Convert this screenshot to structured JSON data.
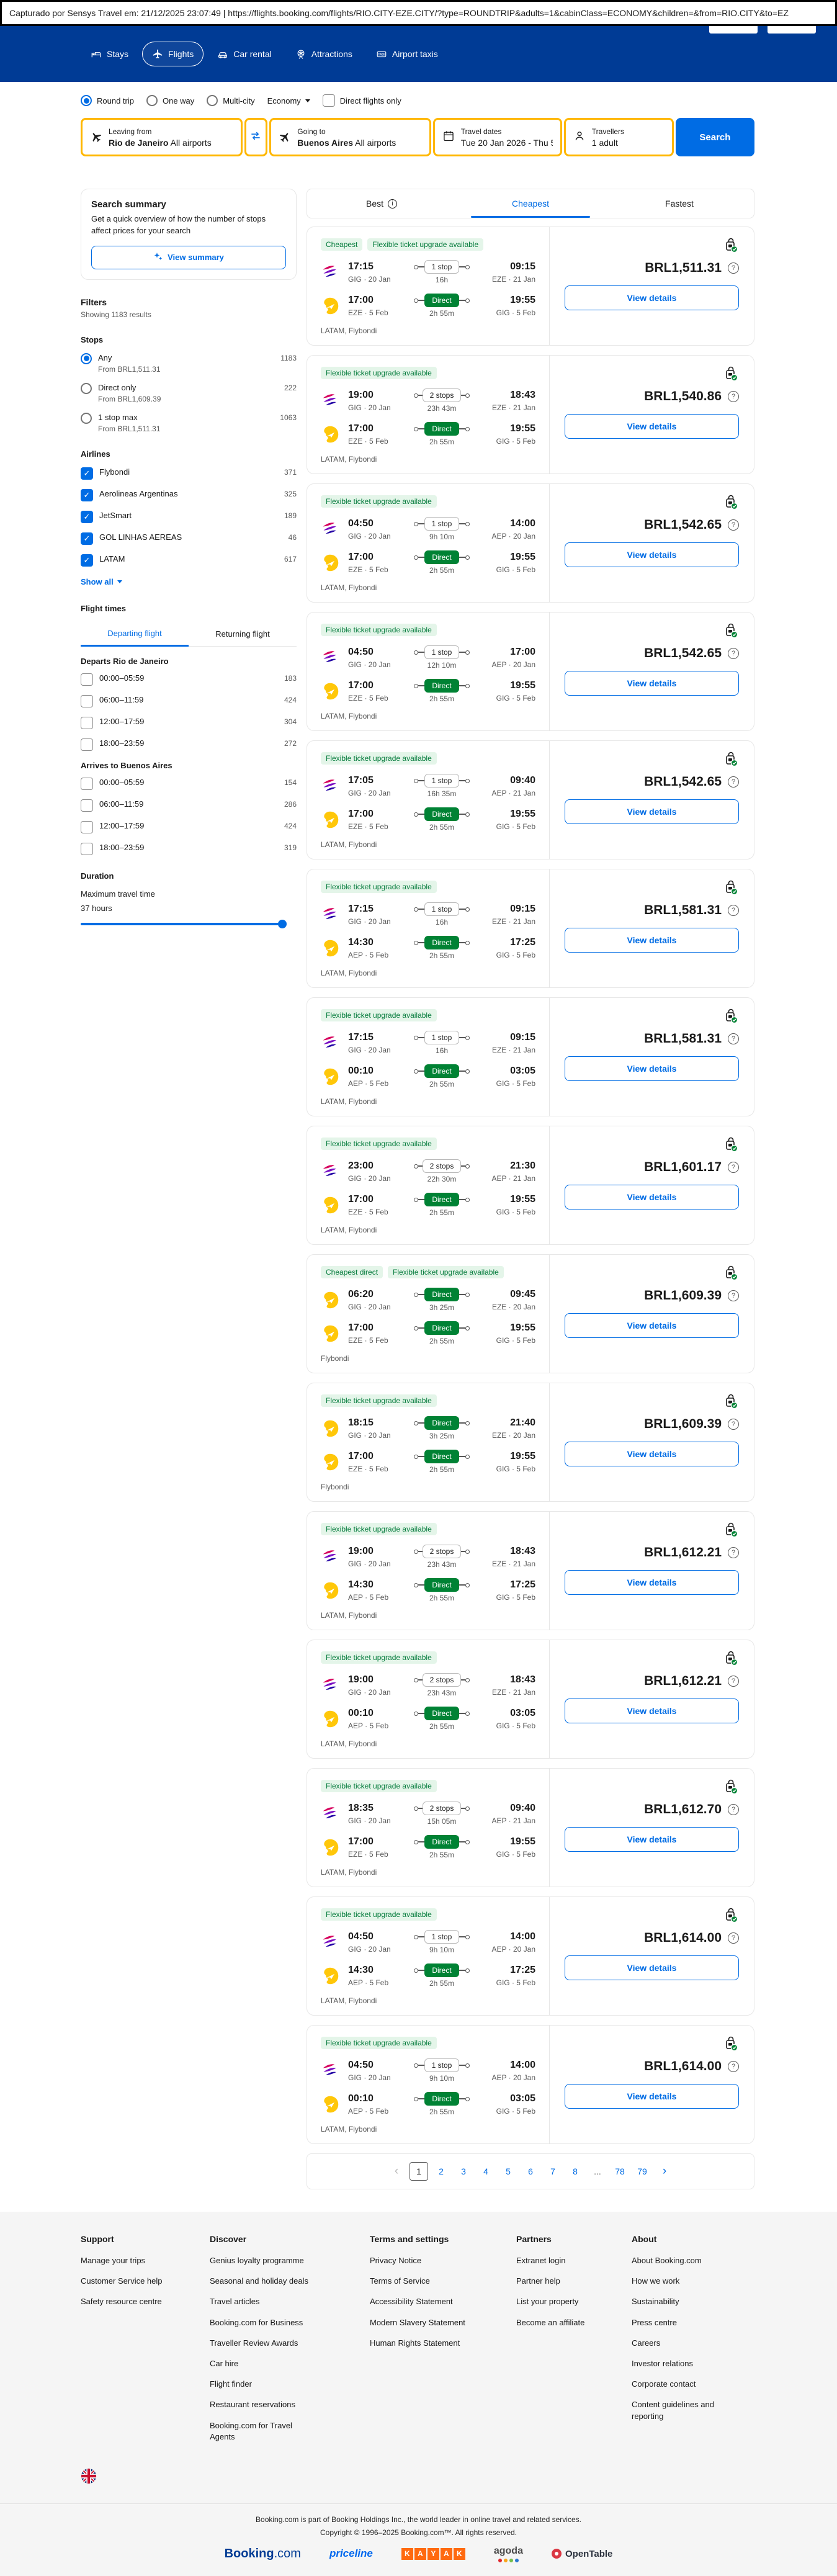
{
  "colors": {
    "header_blue": "#003b95",
    "accent_blue": "#006ce4",
    "search_yellow": "#ffb700",
    "direct_green": "#008234",
    "badge_green_bg": "#e4f5e9"
  },
  "capture_bar": {
    "text": "Capturado por Sensys Travel em: 21/12/2025 23:07:49  |  https://flights.booking.com/flights/RIO.CITY-EZE.CITY/?type=ROUNDTRIP&adults=1&cabinClass=ECONOMY&children=&from=RIO.CITY&to=EZ"
  },
  "header": {
    "nav": [
      {
        "label": "Stays",
        "icon": "bed",
        "active": false
      },
      {
        "label": "Flights",
        "icon": "plane",
        "active": true
      },
      {
        "label": "Car rental",
        "icon": "car",
        "active": false
      },
      {
        "label": "Attractions",
        "icon": "ferris-wheel",
        "active": false
      },
      {
        "label": "Airport taxis",
        "icon": "taxi",
        "active": false
      }
    ]
  },
  "search_form": {
    "trip_types": [
      {
        "label": "Round trip",
        "selected": true
      },
      {
        "label": "One way",
        "selected": false
      },
      {
        "label": "Multi-city",
        "selected": false
      }
    ],
    "cabin_class": "Economy",
    "direct_only_label": "Direct flights only",
    "fields": {
      "from": {
        "label": "Leaving from",
        "value_bold": "Rio de Janeiro",
        "value_rest": " All airports"
      },
      "to": {
        "label": "Going to",
        "value_bold": "Buenos Aires",
        "value_rest": " All airports"
      },
      "dates": {
        "label": "Travel dates",
        "value": "Tue 20 Jan 2026 - Thu 5 ..."
      },
      "travellers": {
        "label": "Travellers",
        "value": "1 adult"
      }
    },
    "search_button": "Search"
  },
  "sidebar": {
    "summary_card": {
      "title": "Search summary",
      "description": "Get a quick overview of how the number of stops affect prices for your search",
      "button": "View summary"
    },
    "filters_title": "Filters",
    "results_count": "Showing 1183 results",
    "stops": {
      "title": "Stops",
      "options": [
        {
          "label": "Any",
          "count": "1183",
          "sub": "From BRL1,511.31",
          "selected": true
        },
        {
          "label": "Direct only",
          "count": "222",
          "sub": "From BRL1,609.39",
          "selected": false
        },
        {
          "label": "1 stop max",
          "count": "1063",
          "sub": "From BRL1,511.31",
          "selected": false
        }
      ]
    },
    "airlines": {
      "title": "Airlines",
      "show_all": "Show all",
      "options": [
        {
          "label": "Flybondi",
          "count": "371",
          "checked": true
        },
        {
          "label": "Aerolineas Argentinas",
          "count": "325",
          "checked": true
        },
        {
          "label": "JetSmart",
          "count": "189",
          "checked": true
        },
        {
          "label": "GOL LINHAS AEREAS",
          "count": "46",
          "checked": true
        },
        {
          "label": "LATAM",
          "count": "617",
          "checked": true
        }
      ]
    },
    "flight_times": {
      "title": "Flight times",
      "tabs": [
        {
          "label": "Departing flight",
          "active": true
        },
        {
          "label": "Returning flight",
          "active": false
        }
      ],
      "groups": [
        {
          "title": "Departs Rio de Janeiro",
          "options": [
            {
              "label": "00:00–05:59",
              "count": "183"
            },
            {
              "label": "06:00–11:59",
              "count": "424"
            },
            {
              "label": "12:00–17:59",
              "count": "304"
            },
            {
              "label": "18:00–23:59",
              "count": "272"
            }
          ]
        },
        {
          "title": "Arrives to Buenos Aires",
          "options": [
            {
              "label": "00:00–05:59",
              "count": "154"
            },
            {
              "label": "06:00–11:59",
              "count": "286"
            },
            {
              "label": "12:00–17:59",
              "count": "424"
            },
            {
              "label": "18:00–23:59",
              "count": "319"
            }
          ]
        }
      ]
    },
    "duration": {
      "title": "Duration",
      "label": "Maximum travel time",
      "value": "37 hours"
    }
  },
  "results": {
    "tabs": [
      {
        "label": "Best",
        "info": true,
        "active": false
      },
      {
        "label": "Cheapest",
        "info": false,
        "active": true
      },
      {
        "label": "Fastest",
        "info": false,
        "active": false
      }
    ],
    "view_details_label": "View details",
    "flights": [
      {
        "badges": [
          "Cheapest",
          "Flexible ticket upgrade available"
        ],
        "legs": [
          {
            "carrier": "latam",
            "dep": "17:15",
            "dep_info": "GIG · 20 Jan",
            "stops": "1 stop",
            "direct": false,
            "dur": "16h",
            "arr": "09:15",
            "arr_info": "EZE · 21 Jan"
          },
          {
            "carrier": "flybondi",
            "dep": "17:00",
            "dep_info": "EZE · 5 Feb",
            "stops": "Direct",
            "direct": true,
            "dur": "2h 55m",
            "arr": "19:55",
            "arr_info": "GIG · 5 Feb"
          }
        ],
        "airlines": "LATAM, Flybondi",
        "price": "BRL1,511.31"
      },
      {
        "badges": [
          "Flexible ticket upgrade available"
        ],
        "legs": [
          {
            "carrier": "latam",
            "dep": "19:00",
            "dep_info": "GIG · 20 Jan",
            "stops": "2 stops",
            "direct": false,
            "dur": "23h 43m",
            "arr": "18:43",
            "arr_info": "EZE · 21 Jan"
          },
          {
            "carrier": "flybondi",
            "dep": "17:00",
            "dep_info": "EZE · 5 Feb",
            "stops": "Direct",
            "direct": true,
            "dur": "2h 55m",
            "arr": "19:55",
            "arr_info": "GIG · 5 Feb"
          }
        ],
        "airlines": "LATAM, Flybondi",
        "price": "BRL1,540.86"
      },
      {
        "badges": [
          "Flexible ticket upgrade available"
        ],
        "legs": [
          {
            "carrier": "latam",
            "dep": "04:50",
            "dep_info": "GIG · 20 Jan",
            "stops": "1 stop",
            "direct": false,
            "dur": "9h 10m",
            "arr": "14:00",
            "arr_info": "AEP · 20 Jan"
          },
          {
            "carrier": "flybondi",
            "dep": "17:00",
            "dep_info": "EZE · 5 Feb",
            "stops": "Direct",
            "direct": true,
            "dur": "2h 55m",
            "arr": "19:55",
            "arr_info": "GIG · 5 Feb"
          }
        ],
        "airlines": "LATAM, Flybondi",
        "price": "BRL1,542.65"
      },
      {
        "badges": [
          "Flexible ticket upgrade available"
        ],
        "legs": [
          {
            "carrier": "latam",
            "dep": "04:50",
            "dep_info": "GIG · 20 Jan",
            "stops": "1 stop",
            "direct": false,
            "dur": "12h 10m",
            "arr": "17:00",
            "arr_info": "AEP · 20 Jan"
          },
          {
            "carrier": "flybondi",
            "dep": "17:00",
            "dep_info": "EZE · 5 Feb",
            "stops": "Direct",
            "direct": true,
            "dur": "2h 55m",
            "arr": "19:55",
            "arr_info": "GIG · 5 Feb"
          }
        ],
        "airlines": "LATAM, Flybondi",
        "price": "BRL1,542.65"
      },
      {
        "badges": [
          "Flexible ticket upgrade available"
        ],
        "legs": [
          {
            "carrier": "latam",
            "dep": "17:05",
            "dep_info": "GIG · 20 Jan",
            "stops": "1 stop",
            "direct": false,
            "dur": "16h 35m",
            "arr": "09:40",
            "arr_info": "AEP · 21 Jan"
          },
          {
            "carrier": "flybondi",
            "dep": "17:00",
            "dep_info": "EZE · 5 Feb",
            "stops": "Direct",
            "direct": true,
            "dur": "2h 55m",
            "arr": "19:55",
            "arr_info": "GIG · 5 Feb"
          }
        ],
        "airlines": "LATAM, Flybondi",
        "price": "BRL1,542.65"
      },
      {
        "badges": [
          "Flexible ticket upgrade available"
        ],
        "legs": [
          {
            "carrier": "latam",
            "dep": "17:15",
            "dep_info": "GIG · 20 Jan",
            "stops": "1 stop",
            "direct": false,
            "dur": "16h",
            "arr": "09:15",
            "arr_info": "EZE · 21 Jan"
          },
          {
            "carrier": "flybondi",
            "dep": "14:30",
            "dep_info": "AEP · 5 Feb",
            "stops": "Direct",
            "direct": true,
            "dur": "2h 55m",
            "arr": "17:25",
            "arr_info": "GIG · 5 Feb"
          }
        ],
        "airlines": "LATAM, Flybondi",
        "price": "BRL1,581.31"
      },
      {
        "badges": [
          "Flexible ticket upgrade available"
        ],
        "legs": [
          {
            "carrier": "latam",
            "dep": "17:15",
            "dep_info": "GIG · 20 Jan",
            "stops": "1 stop",
            "direct": false,
            "dur": "16h",
            "arr": "09:15",
            "arr_info": "EZE · 21 Jan"
          },
          {
            "carrier": "flybondi",
            "dep": "00:10",
            "dep_info": "AEP · 5 Feb",
            "stops": "Direct",
            "direct": true,
            "dur": "2h 55m",
            "arr": "03:05",
            "arr_info": "GIG · 5 Feb"
          }
        ],
        "airlines": "LATAM, Flybondi",
        "price": "BRL1,581.31"
      },
      {
        "badges": [
          "Flexible ticket upgrade available"
        ],
        "legs": [
          {
            "carrier": "latam",
            "dep": "23:00",
            "dep_info": "GIG · 20 Jan",
            "stops": "2 stops",
            "direct": false,
            "dur": "22h 30m",
            "arr": "21:30",
            "arr_info": "AEP · 21 Jan"
          },
          {
            "carrier": "flybondi",
            "dep": "17:00",
            "dep_info": "EZE · 5 Feb",
            "stops": "Direct",
            "direct": true,
            "dur": "2h 55m",
            "arr": "19:55",
            "arr_info": "GIG · 5 Feb"
          }
        ],
        "airlines": "LATAM, Flybondi",
        "price": "BRL1,601.17"
      },
      {
        "badges": [
          "Cheapest direct",
          "Flexible ticket upgrade available"
        ],
        "legs": [
          {
            "carrier": "flybondi",
            "dep": "06:20",
            "dep_info": "GIG · 20 Jan",
            "stops": "Direct",
            "direct": true,
            "dur": "3h 25m",
            "arr": "09:45",
            "arr_info": "EZE · 20 Jan"
          },
          {
            "carrier": "flybondi",
            "dep": "17:00",
            "dep_info": "EZE · 5 Feb",
            "stops": "Direct",
            "direct": true,
            "dur": "2h 55m",
            "arr": "19:55",
            "arr_info": "GIG · 5 Feb"
          }
        ],
        "airlines": "Flybondi",
        "price": "BRL1,609.39"
      },
      {
        "badges": [
          "Flexible ticket upgrade available"
        ],
        "legs": [
          {
            "carrier": "flybondi",
            "dep": "18:15",
            "dep_info": "GIG · 20 Jan",
            "stops": "Direct",
            "direct": true,
            "dur": "3h 25m",
            "arr": "21:40",
            "arr_info": "EZE · 20 Jan"
          },
          {
            "carrier": "flybondi",
            "dep": "17:00",
            "dep_info": "EZE · 5 Feb",
            "stops": "Direct",
            "direct": true,
            "dur": "2h 55m",
            "arr": "19:55",
            "arr_info": "GIG · 5 Feb"
          }
        ],
        "airlines": "Flybondi",
        "price": "BRL1,609.39"
      },
      {
        "badges": [
          "Flexible ticket upgrade available"
        ],
        "legs": [
          {
            "carrier": "latam",
            "dep": "19:00",
            "dep_info": "GIG · 20 Jan",
            "stops": "2 stops",
            "direct": false,
            "dur": "23h 43m",
            "arr": "18:43",
            "arr_info": "EZE · 21 Jan"
          },
          {
            "carrier": "flybondi",
            "dep": "14:30",
            "dep_info": "AEP · 5 Feb",
            "stops": "Direct",
            "direct": true,
            "dur": "2h 55m",
            "arr": "17:25",
            "arr_info": "GIG · 5 Feb"
          }
        ],
        "airlines": "LATAM, Flybondi",
        "price": "BRL1,612.21"
      },
      {
        "badges": [
          "Flexible ticket upgrade available"
        ],
        "legs": [
          {
            "carrier": "latam",
            "dep": "19:00",
            "dep_info": "GIG · 20 Jan",
            "stops": "2 stops",
            "direct": false,
            "dur": "23h 43m",
            "arr": "18:43",
            "arr_info": "EZE · 21 Jan"
          },
          {
            "carrier": "flybondi",
            "dep": "00:10",
            "dep_info": "AEP · 5 Feb",
            "stops": "Direct",
            "direct": true,
            "dur": "2h 55m",
            "arr": "03:05",
            "arr_info": "GIG · 5 Feb"
          }
        ],
        "airlines": "LATAM, Flybondi",
        "price": "BRL1,612.21"
      },
      {
        "badges": [
          "Flexible ticket upgrade available"
        ],
        "legs": [
          {
            "carrier": "latam",
            "dep": "18:35",
            "dep_info": "GIG · 20 Jan",
            "stops": "2 stops",
            "direct": false,
            "dur": "15h 05m",
            "arr": "09:40",
            "arr_info": "AEP · 21 Jan"
          },
          {
            "carrier": "flybondi",
            "dep": "17:00",
            "dep_info": "EZE · 5 Feb",
            "stops": "Direct",
            "direct": true,
            "dur": "2h 55m",
            "arr": "19:55",
            "arr_info": "GIG · 5 Feb"
          }
        ],
        "airlines": "LATAM, Flybondi",
        "price": "BRL1,612.70"
      },
      {
        "badges": [
          "Flexible ticket upgrade available"
        ],
        "legs": [
          {
            "carrier": "latam",
            "dep": "04:50",
            "dep_info": "GIG · 20 Jan",
            "stops": "1 stop",
            "direct": false,
            "dur": "9h 10m",
            "arr": "14:00",
            "arr_info": "AEP · 20 Jan"
          },
          {
            "carrier": "flybondi",
            "dep": "14:30",
            "dep_info": "AEP · 5 Feb",
            "stops": "Direct",
            "direct": true,
            "dur": "2h 55m",
            "arr": "17:25",
            "arr_info": "GIG · 5 Feb"
          }
        ],
        "airlines": "LATAM, Flybondi",
        "price": "BRL1,614.00"
      },
      {
        "badges": [
          "Flexible ticket upgrade available"
        ],
        "legs": [
          {
            "carrier": "latam",
            "dep": "04:50",
            "dep_info": "GIG · 20 Jan",
            "stops": "1 stop",
            "direct": false,
            "dur": "9h 10m",
            "arr": "14:00",
            "arr_info": "AEP · 20 Jan"
          },
          {
            "carrier": "flybondi",
            "dep": "00:10",
            "dep_info": "AEP · 5 Feb",
            "stops": "Direct",
            "direct": true,
            "dur": "2h 55m",
            "arr": "03:05",
            "arr_info": "GIG · 5 Feb"
          }
        ],
        "airlines": "LATAM, Flybondi",
        "price": "BRL1,614.00"
      }
    ],
    "pagination": {
      "current": "1",
      "pages": [
        "1",
        "2",
        "3",
        "4",
        "5",
        "6",
        "7",
        "8",
        "...",
        "78",
        "79"
      ]
    }
  },
  "footer": {
    "columns": [
      {
        "title": "Support",
        "links": [
          "Manage your trips",
          "Customer Service help",
          "Safety resource centre"
        ]
      },
      {
        "title": "Discover",
        "links": [
          "Genius loyalty programme",
          "Seasonal and holiday deals",
          "Travel articles",
          "Booking.com for Business",
          "Traveller Review Awards",
          "Car hire",
          "Flight finder",
          "Restaurant reservations",
          "Booking.com for Travel Agents"
        ]
      },
      {
        "title": "Terms and settings",
        "links": [
          "Privacy Notice",
          "Terms of Service",
          "Accessibility Statement",
          "Modern Slavery Statement",
          "Human Rights Statement"
        ]
      },
      {
        "title": "Partners",
        "links": [
          "Extranet login",
          "Partner help",
          "List your property",
          "Become an affiliate"
        ]
      },
      {
        "title": "About",
        "links": [
          "About Booking.com",
          "How we work",
          "Sustainability",
          "Press centre",
          "Careers",
          "Investor relations",
          "Corporate contact",
          "Content guidelines and reporting"
        ]
      }
    ],
    "legal_line1": "Booking.com is part of Booking Holdings Inc., the world leader in online travel and related services.",
    "legal_line2": "Copyright © 1996–2025 Booking.com™. All rights reserved.",
    "brands": [
      "Booking.com",
      "priceline",
      "KAYAK",
      "agoda",
      "OpenTable"
    ]
  }
}
